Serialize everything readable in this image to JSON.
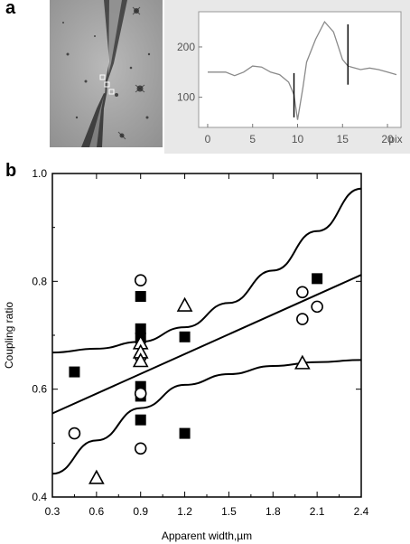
{
  "panel_a_label": "a",
  "panel_b_label": "b",
  "micrograph": {
    "description_label": ""
  },
  "chart_data": [
    {
      "type": "line",
      "panel": "a",
      "x_unit_label": "pix",
      "x_ticks": [
        0,
        5,
        10,
        15,
        20
      ],
      "y_ticks": [
        100,
        200
      ],
      "xlim": [
        -1,
        21.5
      ],
      "ylim": [
        40,
        270
      ],
      "series": [
        {
          "x": [
            0,
            1,
            2,
            3,
            4,
            5,
            6,
            7,
            8,
            9,
            9.6,
            10,
            10.6,
            11,
            12,
            13,
            14,
            15,
            15.6,
            16,
            17,
            18,
            19,
            20,
            21
          ],
          "values": [
            150,
            150,
            150,
            143,
            150,
            162,
            160,
            150,
            145,
            130,
            105,
            55,
            120,
            170,
            215,
            250,
            230,
            175,
            162,
            160,
            155,
            158,
            155,
            150,
            145
          ]
        }
      ],
      "markers": [
        {
          "x": 9.6,
          "y_from": 60,
          "y_to": 148
        },
        {
          "x": 15.6,
          "y_from": 125,
          "y_to": 245
        }
      ],
      "grid": false
    },
    {
      "type": "scatter",
      "panel": "b",
      "xlabel": "Apparent width,µm",
      "ylabel": "Coupling ratio",
      "x_ticks": [
        "0.3",
        "0.6",
        "0.9",
        "1.2",
        "1.5",
        "1.8",
        "2.1",
        "2.4"
      ],
      "y_ticks": [
        "0.4",
        "0.6",
        "0.8",
        "1.0"
      ],
      "xlim": [
        0.3,
        2.4
      ],
      "ylim": [
        0.4,
        1.0
      ],
      "series": [
        {
          "marker": "filled-square",
          "points": [
            [
              0.45,
              0.632
            ],
            [
              0.9,
              0.772
            ],
            [
              0.9,
              0.712
            ],
            [
              0.9,
              0.695
            ],
            [
              0.9,
              0.605
            ],
            [
              0.9,
              0.587
            ],
            [
              0.9,
              0.543
            ],
            [
              1.2,
              0.697
            ],
            [
              1.2,
              0.518
            ],
            [
              2.1,
              0.805
            ]
          ]
        },
        {
          "marker": "open-circle",
          "points": [
            [
              0.45,
              0.518
            ],
            [
              0.9,
              0.802
            ],
            [
              0.9,
              0.66
            ],
            [
              0.9,
              0.592
            ],
            [
              0.9,
              0.49
            ],
            [
              2.0,
              0.78
            ],
            [
              2.0,
              0.73
            ],
            [
              2.1,
              0.753
            ]
          ]
        },
        {
          "marker": "open-triangle",
          "points": [
            [
              0.6,
              0.435
            ],
            [
              0.9,
              0.685
            ],
            [
              0.9,
              0.668
            ],
            [
              0.9,
              0.652
            ],
            [
              1.2,
              0.755
            ],
            [
              2.0,
              0.648
            ]
          ]
        }
      ],
      "fit_line": [
        [
          0.3,
          0.555
        ],
        [
          2.4,
          0.812
        ]
      ],
      "confidence_upper": [
        [
          0.3,
          0.668
        ],
        [
          0.6,
          0.675
        ],
        [
          0.9,
          0.688
        ],
        [
          1.2,
          0.715
        ],
        [
          1.5,
          0.76
        ],
        [
          1.8,
          0.82
        ],
        [
          2.1,
          0.893
        ],
        [
          2.4,
          0.972
        ]
      ],
      "confidence_lower": [
        [
          0.3,
          0.443
        ],
        [
          0.6,
          0.505
        ],
        [
          0.9,
          0.565
        ],
        [
          1.2,
          0.608
        ],
        [
          1.5,
          0.628
        ],
        [
          1.8,
          0.643
        ],
        [
          2.1,
          0.65
        ],
        [
          2.4,
          0.654
        ]
      ],
      "grid": false
    }
  ]
}
